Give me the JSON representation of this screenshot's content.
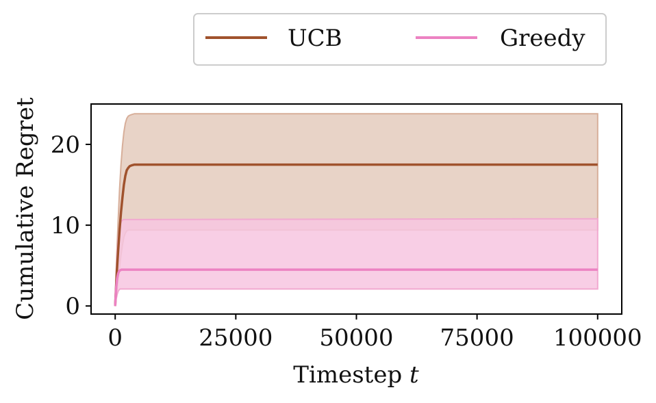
{
  "chart_data": {
    "type": "line",
    "xlabel_text": "Timestep ",
    "xlabel_var": "t",
    "ylabel": "Cumulative Regret",
    "xlim": [
      -5000,
      105000
    ],
    "ylim": [
      -1,
      25
    ],
    "x_ticks": [
      0,
      25000,
      50000,
      75000,
      100000
    ],
    "x_tick_labels": [
      "0",
      "25000",
      "50000",
      "75000",
      "100000"
    ],
    "y_ticks": [
      0,
      10,
      20
    ],
    "y_tick_labels": [
      "0",
      "10",
      "20"
    ],
    "grid": false,
    "legend_placement": "top-center, above plot, two columns",
    "series": [
      {
        "name": "UCB",
        "color": "#a0522d",
        "band_fill": "#e4cbbd",
        "band_edge": "#d7ae99",
        "x": [
          0,
          300,
          600,
          900,
          1200,
          1500,
          1800,
          2100,
          2400,
          2700,
          3000,
          3400,
          4000,
          100000
        ],
        "y": [
          0,
          3.8,
          6.8,
          9.4,
          11.6,
          13.4,
          15.0,
          16.1,
          16.8,
          17.1,
          17.3,
          17.4,
          17.5,
          17.5
        ],
        "upper": [
          0,
          6.0,
          10.5,
          14.5,
          17.5,
          19.8,
          21.5,
          22.6,
          23.2,
          23.5,
          23.6,
          23.7,
          23.8,
          23.8
        ],
        "lower": [
          0,
          1.5,
          3.2,
          4.8,
          6.3,
          7.5,
          8.5,
          9.0,
          9.3,
          9.4,
          9.4,
          9.4,
          9.4,
          9.4
        ]
      },
      {
        "name": "Greedy",
        "color": "#ec82c2",
        "band_fill": "#f7c6e1",
        "band_edge": "#f1a9d0",
        "x": [
          0,
          200,
          400,
          600,
          800,
          1000,
          1300,
          1700,
          100000
        ],
        "y": [
          0,
          2.2,
          3.4,
          4.0,
          4.3,
          4.4,
          4.5,
          4.5,
          4.5
        ],
        "upper": [
          0,
          4.0,
          6.5,
          8.3,
          9.5,
          10.1,
          10.5,
          10.7,
          10.8
        ],
        "lower": [
          0,
          0.8,
          1.4,
          1.8,
          2.0,
          2.1,
          2.1,
          2.1,
          2.1
        ]
      }
    ]
  }
}
